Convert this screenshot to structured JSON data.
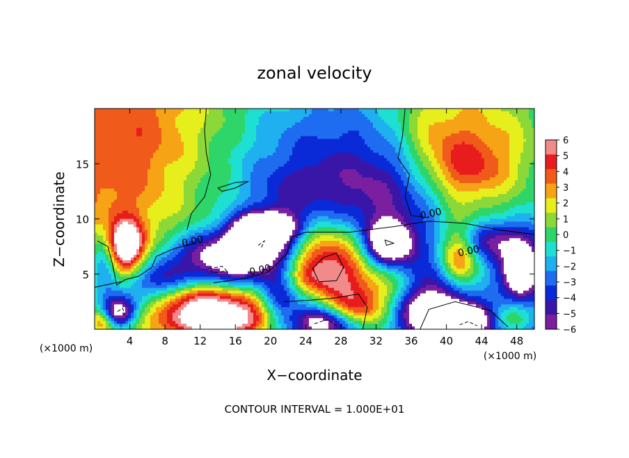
{
  "chart_data": {
    "type": "heatmap",
    "title": "zonal velocity",
    "xlabel": "X−coordinate",
    "ylabel": "Z−coordinate",
    "x_unit_label": "(×1000 m)",
    "x_unit_label_right": "(×1000 m)",
    "footer": "CONTOUR INTERVAL = 1.000E+01",
    "xlim": [
      0,
      50
    ],
    "ylim": [
      0,
      20
    ],
    "x_ticks": [
      4,
      8,
      12,
      16,
      20,
      24,
      28,
      32,
      36,
      40,
      44,
      48
    ],
    "x_tick_labels": [
      "4",
      "8",
      "12",
      "16",
      "20",
      "24",
      "28",
      "32",
      "36",
      "40",
      "44",
      "48"
    ],
    "y_ticks": [
      5,
      10,
      15
    ],
    "y_tick_labels": [
      "5",
      "10",
      "15"
    ],
    "colorbar": {
      "min": -6,
      "max": 6,
      "ticks": [
        6,
        5,
        4,
        3,
        2,
        1,
        0,
        -1,
        -2,
        -3,
        -4,
        -5,
        -6
      ],
      "tick_labels": [
        "6",
        "5",
        "4",
        "3",
        "2",
        "1",
        "0",
        "−1",
        "−2",
        "−3",
        "−4",
        "−5",
        "−6"
      ],
      "colors": [
        "#7a1fa0",
        "#3a16a8",
        "#0a2ad8",
        "#1e6cf0",
        "#1fb0f0",
        "#1ee0d2",
        "#2ed66a",
        "#8cd838",
        "#e6ee1c",
        "#f6a416",
        "#f05a1a",
        "#e81c1c",
        "#f28a8a"
      ]
    },
    "contour_labels": [
      {
        "text": "0.00",
        "x": 11.2,
        "z": 7.7
      },
      {
        "text": "0.00",
        "x": 18.9,
        "z": 5.1
      },
      {
        "text": "0.00",
        "x": 38.3,
        "z": 10.2
      },
      {
        "text": "0.00",
        "x": 42.6,
        "z": 6.8
      }
    ],
    "features": [
      {
        "x": 3,
        "z": 14,
        "sx": 5,
        "sz": 7,
        "v": 2.2
      },
      {
        "x": 8,
        "z": 18,
        "sx": 6,
        "sz": 4,
        "v": 1.0
      },
      {
        "x": 14,
        "z": 15,
        "sx": 4,
        "sz": 5,
        "v": 0.2
      },
      {
        "x": 26,
        "z": 15,
        "sx": 9,
        "sz": 6,
        "v": -3.4
      },
      {
        "x": 22,
        "z": 11,
        "sx": 3,
        "sz": 2.5,
        "v": -2.0
      },
      {
        "x": 33,
        "z": 12,
        "sx": 5,
        "sz": 3,
        "v": -2.6
      },
      {
        "x": 44,
        "z": 16,
        "sx": 6,
        "sz": 5,
        "v": 4.2
      },
      {
        "x": 42,
        "z": 14.5,
        "sx": 3,
        "sz": 2,
        "v": 2.8
      },
      {
        "x": 38,
        "z": 18,
        "sx": 3,
        "sz": 3,
        "v": 1.8
      },
      {
        "x": 3.5,
        "z": 7.5,
        "sx": 1.5,
        "sz": 1.6,
        "v": 8.0
      },
      {
        "x": 1.2,
        "z": 6.0,
        "sx": 1.2,
        "sz": 2.0,
        "v": -4.5
      },
      {
        "x": 16,
        "z": 6.5,
        "sx": 5,
        "sz": 1.6,
        "v": -8.0
      },
      {
        "x": 18.5,
        "z": 8.5,
        "sx": 2.2,
        "sz": 1.2,
        "v": -7.0
      },
      {
        "x": 20,
        "z": 9.3,
        "sx": 2.5,
        "sz": 0.9,
        "v": -5.0
      },
      {
        "x": 26,
        "z": 5.5,
        "sx": 3.6,
        "sz": 3.0,
        "v": 9.0
      },
      {
        "x": 33.5,
        "z": 7.8,
        "sx": 1.8,
        "sz": 1.4,
        "v": -8.0
      },
      {
        "x": 33.5,
        "z": 4.0,
        "sx": 3.0,
        "sz": 1.5,
        "v": 2.5
      },
      {
        "x": 41.5,
        "z": 6.5,
        "sx": 1.6,
        "sz": 2.2,
        "v": 7.0
      },
      {
        "x": 45,
        "z": 8.0,
        "sx": 3.5,
        "sz": 1.3,
        "v": -4.5
      },
      {
        "x": 48.5,
        "z": 5.3,
        "sx": 1.4,
        "sz": 1.6,
        "v": -8.0
      },
      {
        "x": 39,
        "z": 4.0,
        "sx": 3.0,
        "sz": 2.0,
        "v": -3.0
      },
      {
        "x": 38,
        "z": 1.5,
        "sx": 2.5,
        "sz": 1.5,
        "v": -5.5
      },
      {
        "x": 42,
        "z": 0.8,
        "sx": 2.5,
        "sz": 1.0,
        "v": -9.0
      },
      {
        "x": 2.5,
        "z": 1.5,
        "sx": 1.4,
        "sz": 1.0,
        "v": -8.0
      },
      {
        "x": 5,
        "z": 3.5,
        "sx": 2.5,
        "sz": 1.5,
        "v": -3.0
      },
      {
        "x": 8,
        "z": 4.5,
        "sx": 2.0,
        "sz": 1.5,
        "v": -3.0
      },
      {
        "x": 14,
        "z": 1.0,
        "sx": 5.0,
        "sz": 1.4,
        "v": 9.0
      },
      {
        "x": 12,
        "z": 3.0,
        "sx": 4.0,
        "sz": 0.9,
        "v": 3.0
      },
      {
        "x": 24,
        "z": 2.5,
        "sx": 3.0,
        "sz": 1.2,
        "v": -4.0
      },
      {
        "x": 26,
        "z": 0.5,
        "sx": 3.0,
        "sz": 1.0,
        "v": -8.0
      },
      {
        "x": 30,
        "z": 1.5,
        "sx": 2.5,
        "sz": 1.5,
        "v": 5.0
      },
      {
        "x": 21,
        "z": 3.0,
        "sx": 1.5,
        "sz": 2.0,
        "v": -3.5
      },
      {
        "x": 47,
        "z": 1.0,
        "sx": 2.0,
        "sz": 1.0,
        "v": 4.0
      },
      {
        "x": 1.0,
        "z": 0.8,
        "sx": 1.0,
        "sz": 0.8,
        "v": 4.0
      }
    ],
    "contours": {
      "zero_level": [
        [
          [
            12.7,
            20
          ],
          [
            12.5,
            18
          ],
          [
            12.7,
            16
          ],
          [
            13.2,
            14
          ],
          [
            12.5,
            12
          ],
          [
            11.0,
            10.5
          ],
          [
            10.5,
            9.0
          ]
        ],
        [
          [
            11.5,
            7.8
          ],
          [
            9.0,
            7.3
          ],
          [
            7.0,
            6.6
          ],
          [
            6.5,
            5.6
          ],
          [
            5.0,
            4.8
          ],
          [
            3.5,
            4.5
          ]
        ],
        [
          [
            0.3,
            8.0
          ],
          [
            1.5,
            7.5
          ],
          [
            2.0,
            6.0
          ],
          [
            2.5,
            4.0
          ],
          [
            3.5,
            4.5
          ]
        ],
        [
          [
            14.0,
            12.8
          ],
          [
            16.0,
            13.3
          ],
          [
            17.5,
            13.4
          ],
          [
            16.0,
            12.8
          ],
          [
            14.5,
            12.5
          ],
          [
            14.0,
            12.8
          ]
        ],
        [
          [
            19.8,
            5.2
          ],
          [
            21.8,
            6.8
          ],
          [
            22.5,
            8.4
          ],
          [
            24.0,
            8.8
          ],
          [
            29.0,
            8.8
          ],
          [
            31.0,
            9.0
          ],
          [
            34.0,
            9.3
          ],
          [
            38.0,
            9.8
          ],
          [
            42.0,
            9.6
          ],
          [
            46.0,
            9.0
          ],
          [
            50.0,
            8.6
          ]
        ],
        [
          [
            35.3,
            20
          ],
          [
            35.0,
            17.5
          ],
          [
            34.5,
            15.5
          ],
          [
            35.8,
            14.0
          ],
          [
            35.3,
            12.0
          ],
          [
            36.0,
            10.3
          ],
          [
            38.0,
            10.1
          ]
        ],
        [
          [
            13.5,
            4.2
          ],
          [
            17.0,
            4.6
          ],
          [
            19.8,
            5.2
          ]
        ],
        [
          [
            0.0,
            3.8
          ],
          [
            3.0,
            4.3
          ]
        ],
        [
          [
            21.5,
            2.5
          ],
          [
            24.0,
            2.6
          ],
          [
            27.0,
            2.8
          ],
          [
            30.0,
            3.2
          ],
          [
            31.0,
            2.0
          ],
          [
            30.5,
            0.0
          ]
        ],
        [
          [
            37.0,
            0.0
          ],
          [
            38.0,
            1.8
          ],
          [
            41.0,
            2.5
          ],
          [
            45.0,
            1.7
          ],
          [
            47.0,
            0.2
          ]
        ],
        [
          [
            26.0,
            6.5
          ],
          [
            27.5,
            6.9
          ],
          [
            28.3,
            5.6
          ],
          [
            27.5,
            4.4
          ],
          [
            25.5,
            4.3
          ],
          [
            24.8,
            5.5
          ],
          [
            26.0,
            6.5
          ]
        ],
        [
          [
            33.0,
            8.1
          ],
          [
            34.0,
            7.8
          ],
          [
            33.2,
            7.6
          ],
          [
            33.0,
            8.1
          ]
        ]
      ],
      "negative_level": [
        [
          [
            13.0,
            5.5
          ],
          [
            14.5,
            5.7
          ],
          [
            15.0,
            5.3
          ],
          [
            13.5,
            5.1
          ],
          [
            13.0,
            5.5
          ]
        ],
        [
          [
            18.6,
            7.6
          ],
          [
            19.3,
            8.0
          ],
          [
            18.9,
            7.3
          ]
        ],
        [
          [
            2.6,
            1.6
          ],
          [
            3.2,
            1.9
          ],
          [
            3.4,
            1.3
          ]
        ],
        [
          [
            25.0,
            0.5
          ],
          [
            26.5,
            0.9
          ],
          [
            27.5,
            0.3
          ]
        ],
        [
          [
            41.5,
            0.4
          ],
          [
            42.5,
            0.7
          ],
          [
            43.5,
            0.3
          ]
        ]
      ]
    }
  }
}
